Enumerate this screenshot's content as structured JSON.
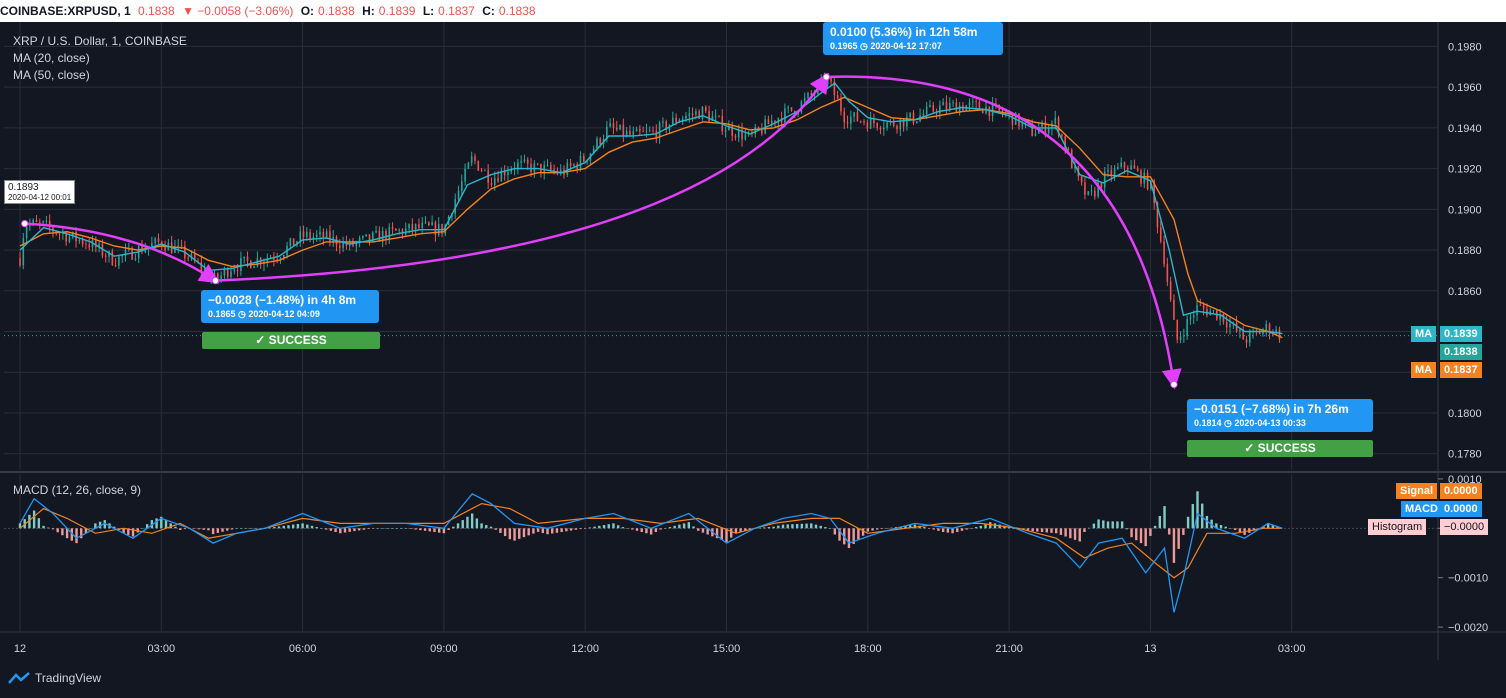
{
  "header": {
    "symbol": "COINBASE:XRPUSD, 1",
    "last": "0.1838",
    "change": "▼ −0.0058 (−3.06%)",
    "o_label": "O:",
    "o": "0.1838",
    "h_label": "H:",
    "h": "0.1839",
    "l_label": "L:",
    "l": "0.1837",
    "c_label": "C:",
    "c": "0.1838"
  },
  "legend": {
    "title": "XRP / U.S. Dollar, 1, COINBASE",
    "ma20": "MA (20, close)",
    "ma50": "MA (50, close)",
    "macd": "MACD (12, 26, close, 9)"
  },
  "tags": {
    "ma_top_label": "MA",
    "ma_top_value": "0.1839",
    "price_value": "0.1838",
    "ma_bot_label": "MA",
    "ma_bot_value": "0.1837",
    "signal_label": "Signal",
    "signal_value": "0.0000",
    "macd_label": "MACD",
    "macd_value": "0.0000",
    "hist_label": "Histogram",
    "hist_value": "−0.0000"
  },
  "annotations": {
    "start": {
      "value": "0.1893",
      "date": "2020-04-12 00:01"
    },
    "a1": {
      "line1": "−0.0028 (−1.48%) in 4h 8m",
      "line2": "0.1865 ◷ 2020-04-12  04:09",
      "status": "✓ SUCCESS"
    },
    "a2": {
      "line1": "0.0100 (5.36%) in 12h 58m",
      "line2": "0.1965 ◷ 2020-04-12  17:07"
    },
    "a3": {
      "line1": "−0.0151 (−7.68%) in 7h 26m",
      "line2": "0.1814 ◷ 2020-04-13  00:33",
      "status": "✓ SUCCESS"
    }
  },
  "branding": {
    "name": "TradingView"
  },
  "colors": {
    "background": "#131722",
    "grid": "#2a2e39",
    "up": "#26a69a",
    "down": "#ef5350",
    "ma20": "#2bb7c9",
    "ma50": "#f5821f",
    "arrow": "#e040fb",
    "macd": "#2196f3",
    "signal": "#f5821f"
  },
  "chart_data": {
    "type": "line",
    "x_ticks": [
      "12",
      "03:00",
      "06:00",
      "09:00",
      "12:00",
      "15:00",
      "18:00",
      "21:00",
      "13",
      "03:00"
    ],
    "y_ticks": [
      "0.1980",
      "0.1960",
      "0.1940",
      "0.1920",
      "0.1900",
      "0.1880",
      "0.1860",
      "0.1840",
      "0.1820",
      "0.1800",
      "0.1780"
    ],
    "ylim": [
      0.1772,
      0.1992
    ],
    "macd_ticks": [
      "0.0010",
      "0.0000",
      "−0.0010",
      "−0.0020"
    ],
    "macd_ylim": [
      -0.0021,
      0.0011
    ],
    "price_series": {
      "name": "XRPUSD",
      "x_hours": [
        0,
        0.1,
        0.5,
        1.0,
        1.5,
        2.0,
        2.5,
        3.0,
        3.5,
        4.0,
        4.15,
        4.5,
        5.0,
        5.5,
        6.0,
        6.5,
        7.0,
        7.5,
        8.0,
        8.5,
        9.0,
        9.2,
        9.6,
        10.0,
        10.5,
        11.0,
        11.5,
        12.0,
        12.5,
        13.0,
        13.5,
        14.0,
        14.5,
        15.0,
        15.5,
        16.0,
        16.5,
        17.0,
        17.12,
        17.5,
        18.0,
        18.5,
        19.0,
        19.5,
        20.0,
        20.5,
        21.0,
        21.5,
        22.0,
        22.5,
        22.7,
        23.0,
        23.5,
        24.0,
        24.3,
        24.55,
        24.8,
        25.0,
        25.5,
        26.0,
        26.5,
        26.8
      ],
      "values": [
        0.1876,
        0.1893,
        0.1892,
        0.1887,
        0.1883,
        0.1875,
        0.188,
        0.1884,
        0.1878,
        0.1868,
        0.1865,
        0.1872,
        0.1875,
        0.1878,
        0.1887,
        0.1886,
        0.1882,
        0.1886,
        0.1889,
        0.1891,
        0.189,
        0.1903,
        0.1925,
        0.1915,
        0.1922,
        0.192,
        0.1918,
        0.1925,
        0.194,
        0.1936,
        0.1938,
        0.1945,
        0.1948,
        0.194,
        0.1935,
        0.1944,
        0.195,
        0.196,
        0.1965,
        0.1946,
        0.1943,
        0.1942,
        0.1945,
        0.195,
        0.1951,
        0.195,
        0.1946,
        0.1938,
        0.1943,
        0.1912,
        0.1905,
        0.1915,
        0.1922,
        0.1912,
        0.1875,
        0.1835,
        0.1845,
        0.1852,
        0.1848,
        0.1836,
        0.1842,
        0.1838
      ]
    },
    "ma20_series": {
      "x_hours": [
        0,
        0.5,
        1.0,
        1.5,
        2.0,
        2.5,
        3.0,
        3.5,
        4.0,
        4.5,
        5.0,
        5.5,
        6.0,
        6.5,
        7.0,
        7.5,
        8.0,
        8.5,
        9.0,
        9.5,
        10.0,
        10.5,
        11.0,
        11.5,
        12.0,
        12.5,
        13.0,
        13.5,
        14.0,
        14.5,
        15.0,
        15.5,
        16.0,
        16.5,
        17.0,
        17.3,
        17.6,
        18.0,
        18.5,
        19.0,
        19.5,
        20.0,
        20.5,
        21.0,
        21.5,
        22.0,
        22.5,
        23.0,
        23.5,
        24.0,
        24.4,
        24.7,
        25.0,
        25.5,
        26.0,
        26.5,
        26.8
      ],
      "values": [
        0.188,
        0.1891,
        0.1888,
        0.1884,
        0.1877,
        0.1879,
        0.1883,
        0.1879,
        0.187,
        0.1871,
        0.1874,
        0.1877,
        0.1885,
        0.1886,
        0.1883,
        0.1885,
        0.1888,
        0.189,
        0.189,
        0.1912,
        0.1917,
        0.192,
        0.192,
        0.1918,
        0.1923,
        0.1936,
        0.1936,
        0.1937,
        0.1943,
        0.1946,
        0.1941,
        0.1937,
        0.1942,
        0.1948,
        0.1957,
        0.1962,
        0.1953,
        0.1945,
        0.1943,
        0.1944,
        0.1948,
        0.195,
        0.1949,
        0.1946,
        0.194,
        0.194,
        0.1917,
        0.1913,
        0.1919,
        0.1914,
        0.188,
        0.1848,
        0.185,
        0.1848,
        0.184,
        0.184,
        0.1839
      ]
    },
    "ma50_series": {
      "x_hours": [
        0,
        0.5,
        1.0,
        1.5,
        2.0,
        2.5,
        3.0,
        3.5,
        4.0,
        4.5,
        5.0,
        5.5,
        6.0,
        6.5,
        7.0,
        7.5,
        8.0,
        8.5,
        9.0,
        9.5,
        10.0,
        10.5,
        11.0,
        11.5,
        12.0,
        12.5,
        13.0,
        13.5,
        14.0,
        14.5,
        15.0,
        15.5,
        16.0,
        16.5,
        17.0,
        17.5,
        18.0,
        18.5,
        19.0,
        19.5,
        20.0,
        20.5,
        21.0,
        21.5,
        22.0,
        22.5,
        23.0,
        23.5,
        24.0,
        24.5,
        24.8,
        25.0,
        25.5,
        26.0,
        26.5,
        26.8
      ],
      "values": [
        0.1882,
        0.1888,
        0.1889,
        0.1886,
        0.1882,
        0.188,
        0.1882,
        0.1881,
        0.1875,
        0.1872,
        0.1873,
        0.1875,
        0.188,
        0.1884,
        0.1884,
        0.1884,
        0.1886,
        0.1888,
        0.1889,
        0.19,
        0.191,
        0.1915,
        0.1918,
        0.1918,
        0.192,
        0.1928,
        0.1933,
        0.1935,
        0.1939,
        0.1943,
        0.1942,
        0.1939,
        0.194,
        0.1944,
        0.195,
        0.1955,
        0.195,
        0.1945,
        0.1944,
        0.1946,
        0.1948,
        0.1949,
        0.1947,
        0.1943,
        0.1941,
        0.193,
        0.1917,
        0.1916,
        0.1916,
        0.1895,
        0.1868,
        0.1855,
        0.185,
        0.1843,
        0.184,
        0.1837
      ]
    },
    "macd_series": {
      "x_hours": [
        0,
        0.3,
        0.7,
        1.2,
        1.8,
        2.4,
        3.0,
        3.6,
        4.1,
        4.6,
        5.2,
        6.0,
        6.8,
        7.5,
        8.2,
        9.0,
        9.6,
        10.0,
        10.5,
        11.2,
        12.0,
        12.6,
        13.4,
        14.2,
        15.0,
        15.6,
        16.2,
        16.8,
        17.2,
        17.6,
        18.2,
        19.0,
        19.8,
        20.6,
        21.4,
        22.0,
        22.5,
        22.9,
        23.4,
        23.9,
        24.3,
        24.5,
        24.7,
        25.0,
        25.4,
        26.0,
        26.5,
        26.8
      ],
      "values": [
        0.0001,
        0.0006,
        0.0003,
        -0.0002,
        0.0001,
        -0.0002,
        0.0002,
        0.0,
        -0.0003,
        -0.0001,
        0.0,
        0.0003,
        0.0,
        0.0001,
        0.0001,
        0.0,
        0.0007,
        0.0005,
        0.0001,
        0.0,
        0.0002,
        0.0003,
        0.0,
        0.0003,
        -0.0003,
        0.0,
        0.0002,
        0.0003,
        0.0002,
        -0.0003,
        -0.0001,
        0.0001,
        0.0,
        0.0002,
        -0.0001,
        -0.0003,
        -0.0008,
        -0.0003,
        -0.0002,
        -0.0009,
        -0.0004,
        -0.0017,
        -0.001,
        0.0003,
        0.0,
        -0.0002,
        0.0001,
        0.0
      ]
    },
    "signal_series": {
      "x_hours": [
        0,
        0.5,
        1.0,
        1.6,
        2.2,
        2.8,
        3.4,
        4.0,
        4.6,
        5.2,
        6.0,
        6.8,
        7.5,
        8.2,
        9.0,
        9.8,
        10.4,
        11.0,
        12.0,
        12.8,
        13.6,
        14.4,
        15.2,
        16.0,
        16.8,
        17.4,
        18.0,
        18.8,
        19.6,
        20.4,
        21.2,
        22.0,
        22.6,
        23.1,
        23.6,
        24.1,
        24.5,
        24.8,
        25.2,
        25.8,
        26.4,
        26.8
      ],
      "values": [
        0.0,
        0.0004,
        0.0002,
        -0.0001,
        0.0,
        -0.0001,
        0.0001,
        -0.0002,
        -0.0001,
        0.0,
        0.0002,
        0.0001,
        0.0001,
        0.0001,
        0.0001,
        0.0005,
        0.0004,
        0.0001,
        0.0002,
        0.0002,
        0.0001,
        0.0002,
        -0.0001,
        0.0001,
        0.0002,
        0.0002,
        -0.0001,
        0.0,
        0.0001,
        0.0001,
        0.0,
        -0.0002,
        -0.0006,
        -0.0004,
        -0.0003,
        -0.0007,
        -0.001,
        -0.0008,
        -0.0001,
        -0.0001,
        0.0,
        0.0
      ]
    }
  }
}
